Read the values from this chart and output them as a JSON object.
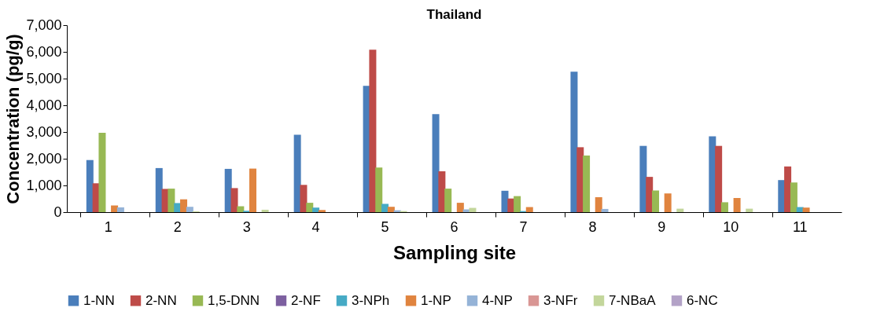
{
  "chart_data": {
    "type": "bar",
    "title": "Thailand",
    "xlabel": "Sampling site",
    "ylabel": "Concentration (pg/g)",
    "categories": [
      "1",
      "2",
      "3",
      "4",
      "5",
      "6",
      "7",
      "8",
      "9",
      "10",
      "11"
    ],
    "ylim": [
      0,
      7000
    ],
    "yticks": [
      {
        "value": 0,
        "label": "0"
      },
      {
        "value": 1000,
        "label": "1,000"
      },
      {
        "value": 2000,
        "label": "2,000"
      },
      {
        "value": 3000,
        "label": "3,000"
      },
      {
        "value": 4000,
        "label": "4,000"
      },
      {
        "value": 5000,
        "label": "5,000"
      },
      {
        "value": 6000,
        "label": "6,000"
      },
      {
        "value": 7000,
        "label": "7,000"
      }
    ],
    "grid": false,
    "legend": "bottom",
    "series": [
      {
        "name": "1-NN",
        "color": "#4a7ebb",
        "values": [
          1950,
          1650,
          1620,
          2900,
          4730,
          3670,
          800,
          5260,
          2480,
          2840,
          1200
        ]
      },
      {
        "name": "2-NN",
        "color": "#be4b48",
        "values": [
          1080,
          870,
          900,
          1020,
          6080,
          1530,
          510,
          2430,
          1320,
          2480,
          1710
        ]
      },
      {
        "name": "1,5-DNN",
        "color": "#98b954",
        "values": [
          2970,
          880,
          220,
          350,
          1670,
          880,
          600,
          2120,
          810,
          370,
          1110
        ]
      },
      {
        "name": "2-NF",
        "color": "#7d60a0",
        "values": [
          null,
          null,
          null,
          null,
          null,
          null,
          null,
          null,
          null,
          null,
          null
        ]
      },
      {
        "name": "3-NPh",
        "color": "#46aac5",
        "values": [
          null,
          340,
          50,
          170,
          310,
          null,
          40,
          null,
          null,
          null,
          190
        ]
      },
      {
        "name": "1-NP",
        "color": "#e0843f",
        "values": [
          250,
          480,
          1630,
          80,
          200,
          350,
          190,
          560,
          700,
          530,
          170
        ]
      },
      {
        "name": "4-NP",
        "color": "#95b3d7",
        "values": [
          180,
          200,
          null,
          null,
          70,
          100,
          null,
          120,
          null,
          null,
          null
        ]
      },
      {
        "name": "3-NFr",
        "color": "#d99694",
        "values": [
          null,
          null,
          null,
          null,
          null,
          null,
          null,
          null,
          null,
          null,
          null
        ]
      },
      {
        "name": "7-NBaA",
        "color": "#c3d69b",
        "values": [
          null,
          30,
          90,
          null,
          40,
          160,
          null,
          null,
          130,
          130,
          null
        ]
      },
      {
        "name": "6-NC",
        "color": "#b3a2c7",
        "values": [
          null,
          null,
          null,
          null,
          null,
          null,
          null,
          null,
          null,
          null,
          null
        ]
      }
    ]
  }
}
